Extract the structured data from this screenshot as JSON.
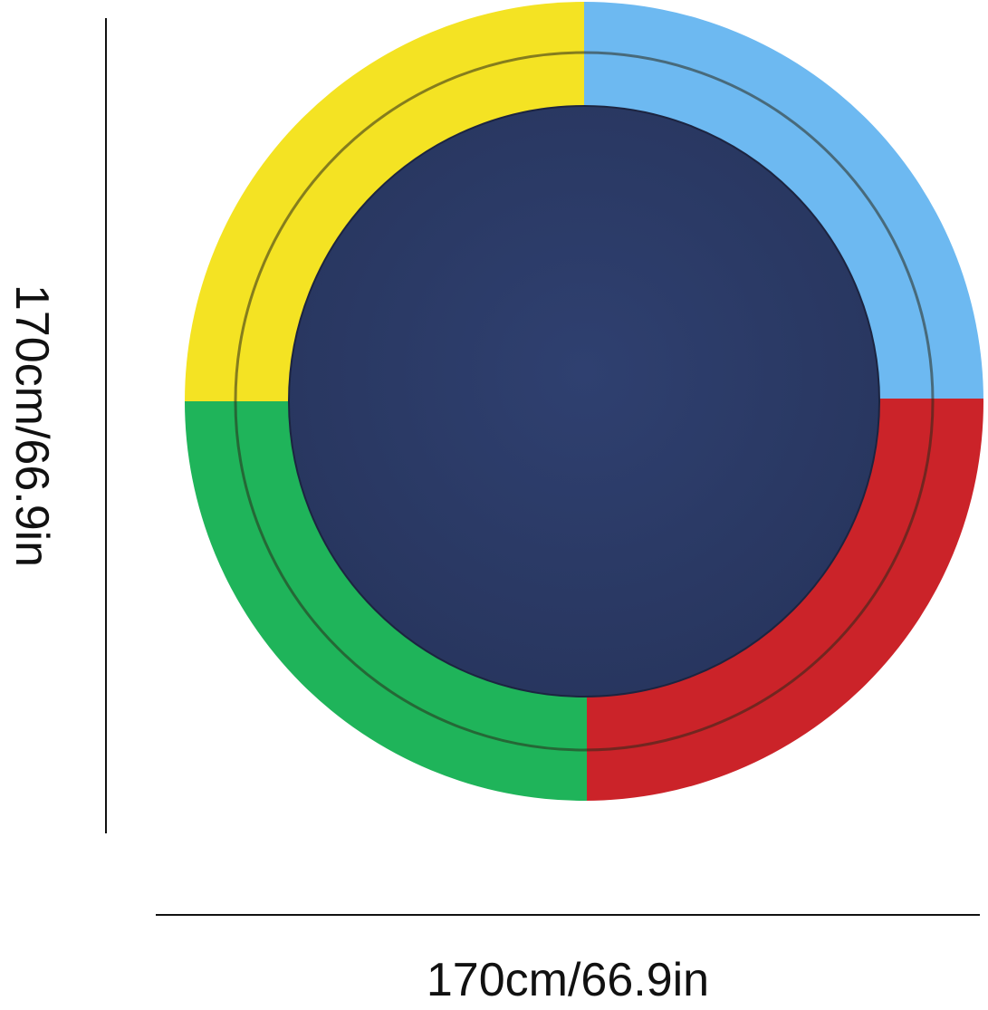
{
  "dimensions": {
    "height_label": "170cm/66.9in",
    "width_label": "170cm/66.9in"
  },
  "colors": {
    "yellow": "#f4e323",
    "blue": "#6db9f1",
    "red": "#cb2329",
    "green": "#1fb45a",
    "pool_floor": "#2c3b67"
  }
}
